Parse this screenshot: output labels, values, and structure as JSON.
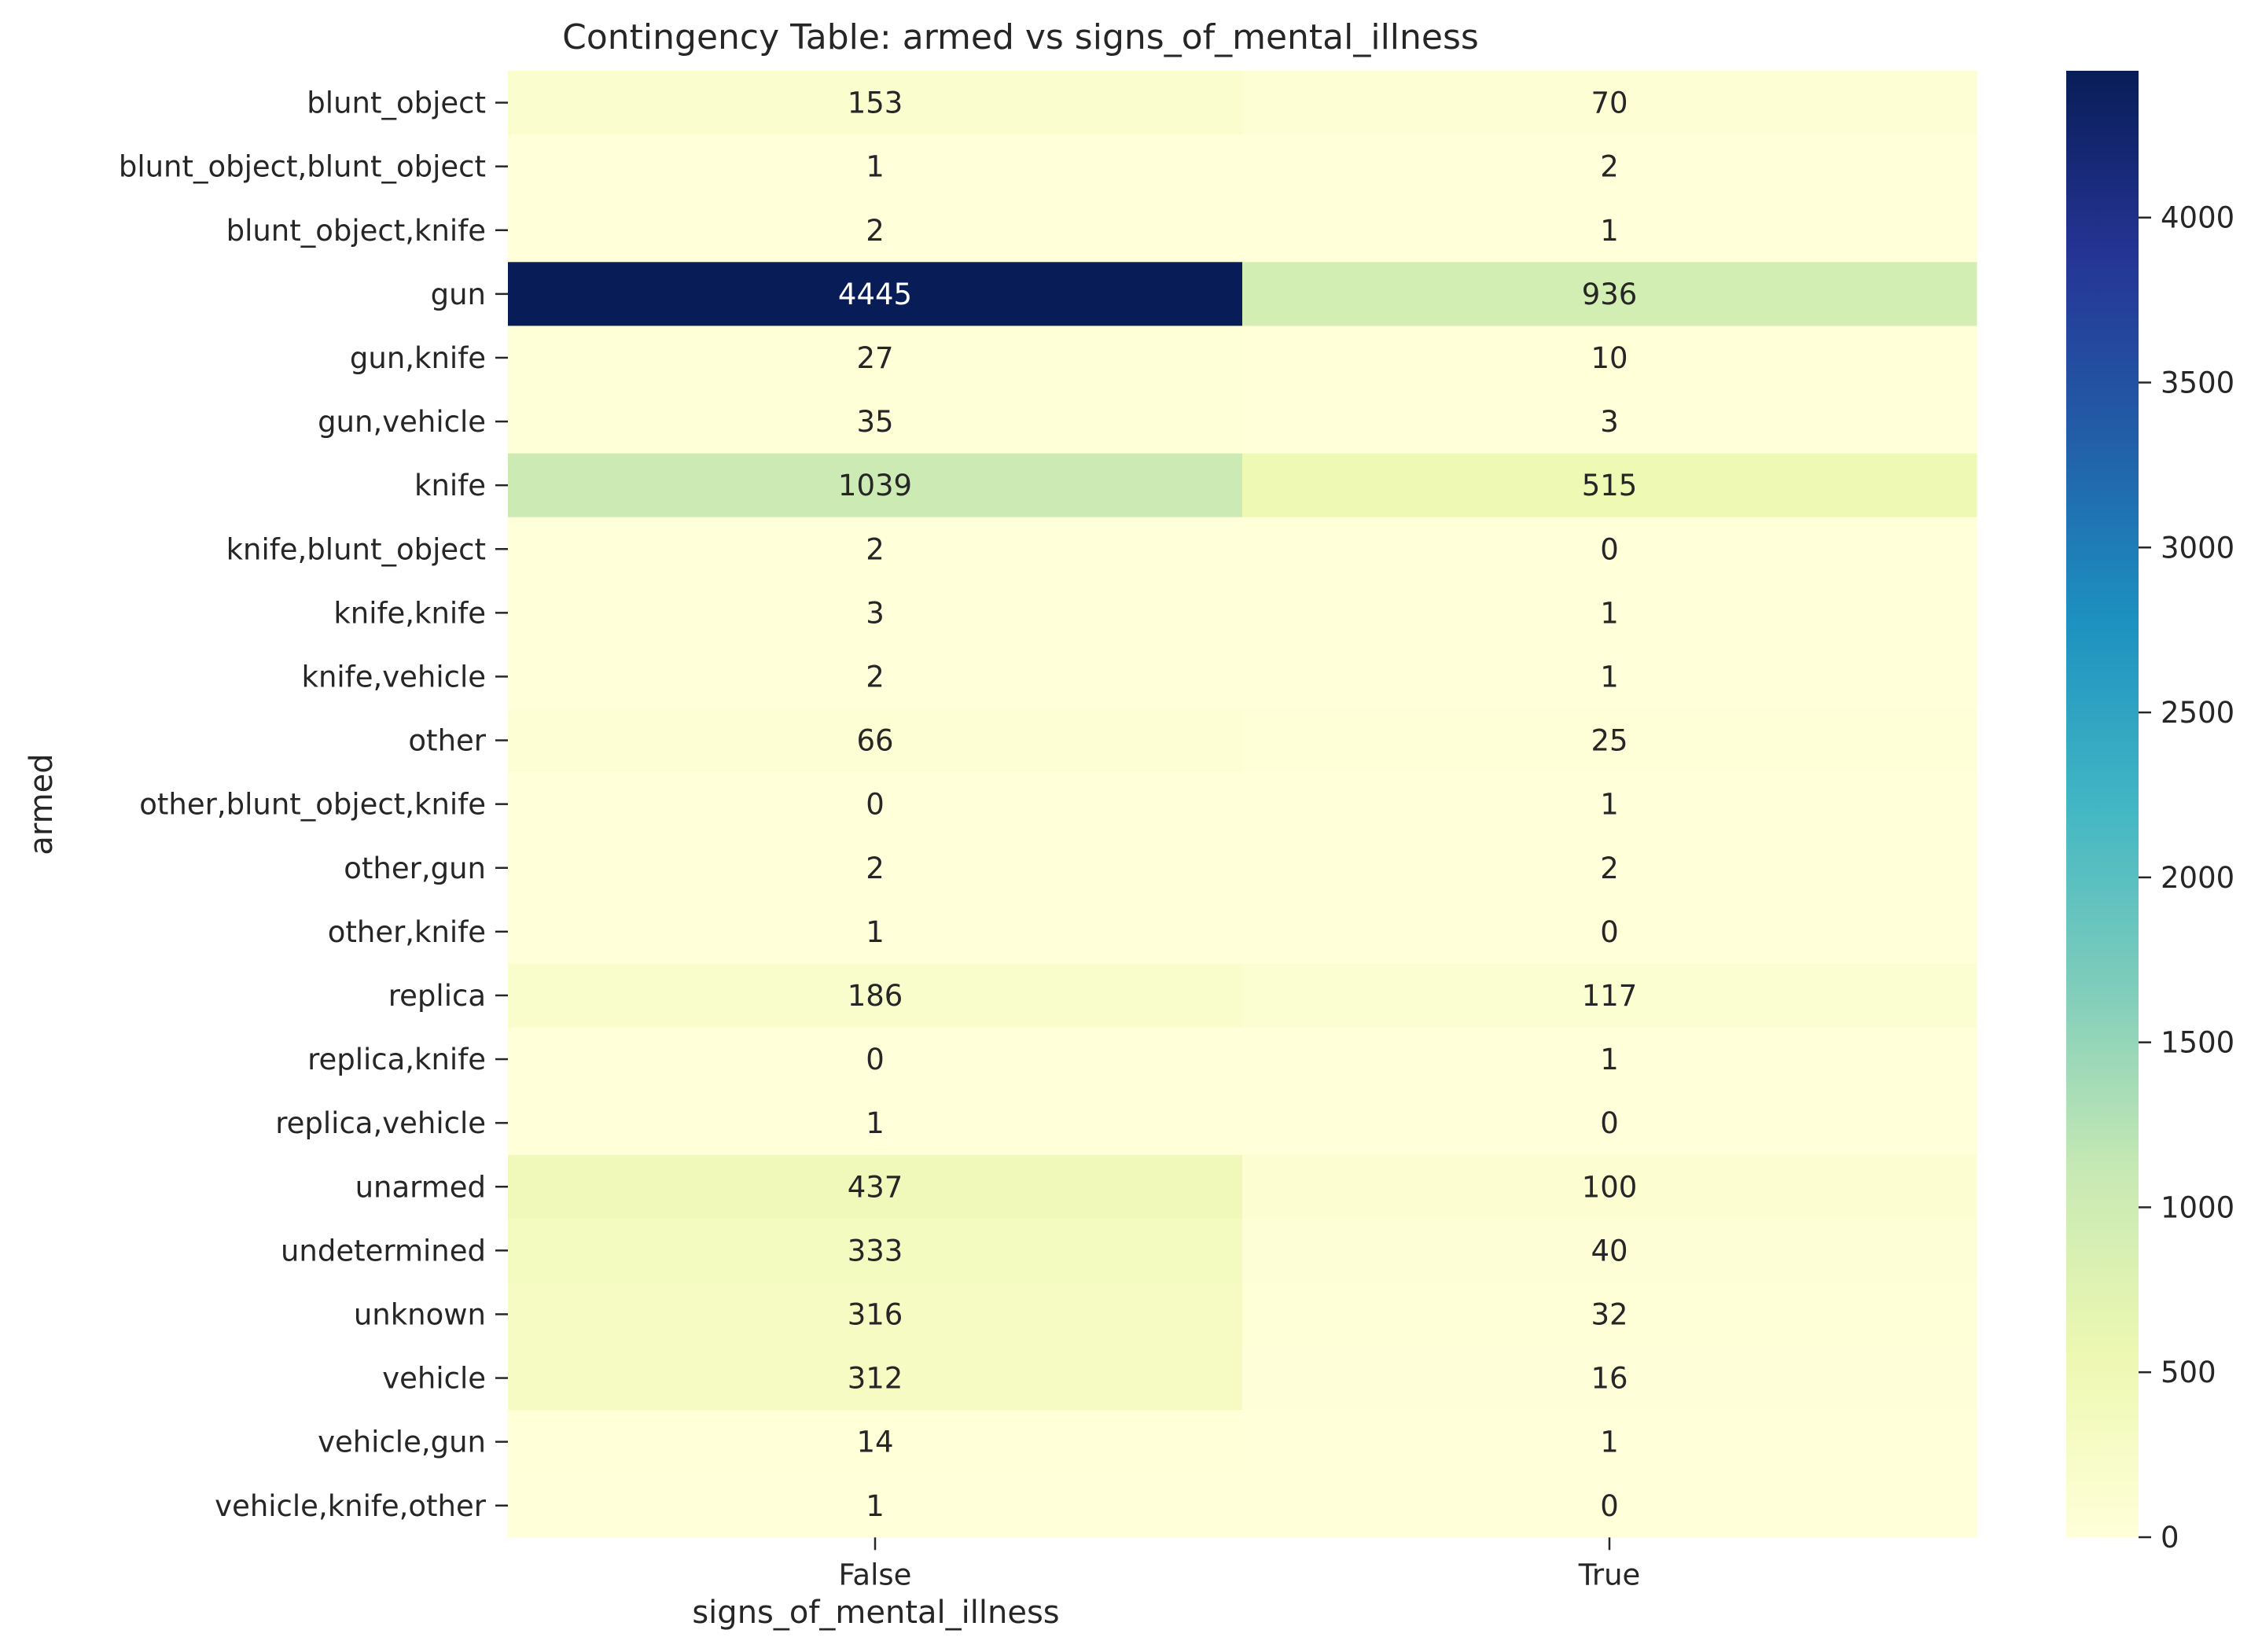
{
  "chart_data": {
    "type": "heatmap",
    "title": "Contingency Table: armed vs signs_of_mental_illness",
    "xlabel": "signs_of_mental_illness",
    "ylabel": "armed",
    "columns": [
      "False",
      "True"
    ],
    "rows": [
      "blunt_object",
      "blunt_object,blunt_object",
      "blunt_object,knife",
      "gun",
      "gun,knife",
      "gun,vehicle",
      "knife",
      "knife,blunt_object",
      "knife,knife",
      "knife,vehicle",
      "other",
      "other,blunt_object,knife",
      "other,gun",
      "other,knife",
      "replica",
      "replica,knife",
      "replica,vehicle",
      "unarmed",
      "undetermined",
      "unknown",
      "vehicle",
      "vehicle,gun",
      "vehicle,knife,other"
    ],
    "values": [
      [
        153,
        70
      ],
      [
        1,
        2
      ],
      [
        2,
        1
      ],
      [
        4445,
        936
      ],
      [
        27,
        10
      ],
      [
        35,
        3
      ],
      [
        1039,
        515
      ],
      [
        2,
        0
      ],
      [
        3,
        1
      ],
      [
        2,
        1
      ],
      [
        66,
        25
      ],
      [
        0,
        1
      ],
      [
        2,
        2
      ],
      [
        1,
        0
      ],
      [
        186,
        117
      ],
      [
        0,
        1
      ],
      [
        1,
        0
      ],
      [
        437,
        100
      ],
      [
        333,
        40
      ],
      [
        316,
        32
      ],
      [
        312,
        16
      ],
      [
        14,
        1
      ],
      [
        1,
        0
      ]
    ],
    "colorbar": {
      "colormap": "YlGnBu",
      "range": [
        0,
        4445
      ],
      "ticks": [
        "0",
        "500",
        "1000",
        "1500",
        "2000",
        "2500",
        "3000",
        "3500",
        "4000"
      ]
    }
  }
}
